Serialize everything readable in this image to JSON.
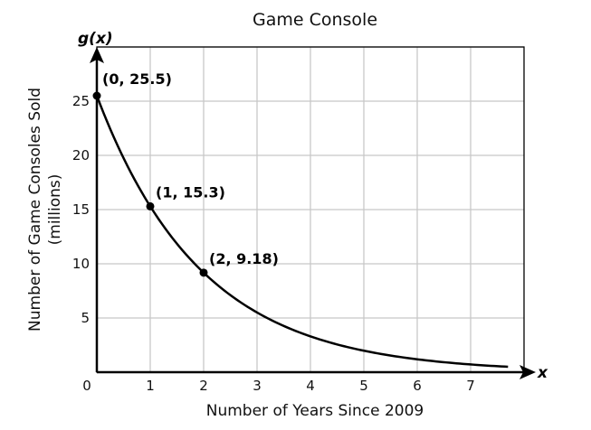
{
  "chart_data": {
    "type": "line",
    "title": "Game Console",
    "xlabel": "Number of Years Since 2009",
    "ylabel_line1": "Number of Game Consoles Sold",
    "ylabel_line2": "(millions)",
    "x_axis_var": "x",
    "y_axis_var_func": "g(",
    "y_axis_var_arg": "x",
    "y_axis_var_close": ")",
    "xlim": [
      0,
      8
    ],
    "ylim": [
      0,
      25
    ],
    "grid": true,
    "x_ticks": [
      0,
      1,
      2,
      3,
      4,
      5,
      6,
      7
    ],
    "y_ticks": [
      5,
      10,
      15,
      20,
      25
    ],
    "series": [
      {
        "function": "25.5 * 0.6^x",
        "x_start": 0,
        "x_end": 7.7
      }
    ],
    "points": [
      {
        "x": 0,
        "y": 25.5,
        "label": "(0, 25.5)"
      },
      {
        "x": 1,
        "y": 15.3,
        "label": "(1, 15.3)"
      },
      {
        "x": 2,
        "y": 9.18,
        "label": "(2, 9.18)"
      }
    ],
    "line_color": "#000000",
    "grid_color": "#c8c8c8"
  }
}
